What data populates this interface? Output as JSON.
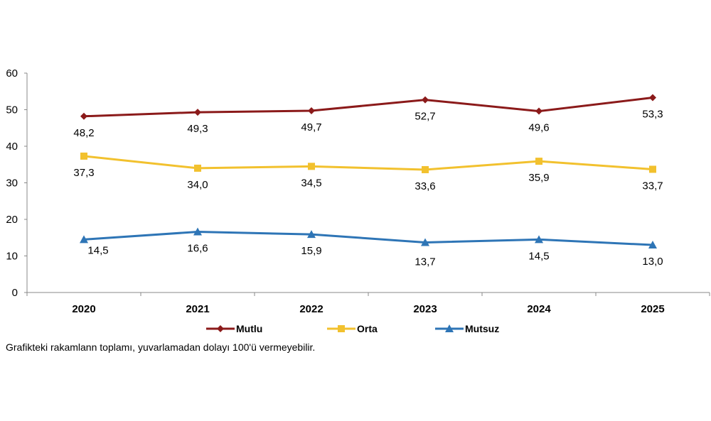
{
  "chart_data": {
    "type": "line",
    "categories": [
      "2020",
      "2021",
      "2022",
      "2023",
      "2024",
      "2025"
    ],
    "series": [
      {
        "name": "Mutlu",
        "color": "#8B1A1A",
        "marker": "diamond",
        "values": [
          48.2,
          49.3,
          49.7,
          52.7,
          49.6,
          53.3
        ],
        "labels": [
          "48,2",
          "49,3",
          "49,7",
          "52,7",
          "49,6",
          "53,3"
        ]
      },
      {
        "name": "Orta",
        "color": "#F2C12E",
        "marker": "square",
        "values": [
          37.3,
          34.0,
          34.5,
          33.6,
          35.9,
          33.7
        ],
        "labels": [
          "37,3",
          "34,0",
          "34,5",
          "33,6",
          "35,9",
          "33,7"
        ]
      },
      {
        "name": "Mutsuz",
        "color": "#2E75B6",
        "marker": "triangle",
        "values": [
          14.5,
          16.6,
          15.9,
          13.7,
          14.5,
          13.0
        ],
        "labels": [
          "14,5",
          "16,6",
          "15,9",
          "13,7",
          "14,5",
          "13,0"
        ]
      }
    ],
    "ylim": [
      0,
      60
    ],
    "yticks": [
      "0",
      "10",
      "20",
      "30",
      "40",
      "50",
      "60"
    ],
    "grid": false,
    "legend": "bottom"
  },
  "footnote": "Grafikteki rakamlann toplamı, yuvarlamadan dolayı 100'ü vermeyebilir."
}
